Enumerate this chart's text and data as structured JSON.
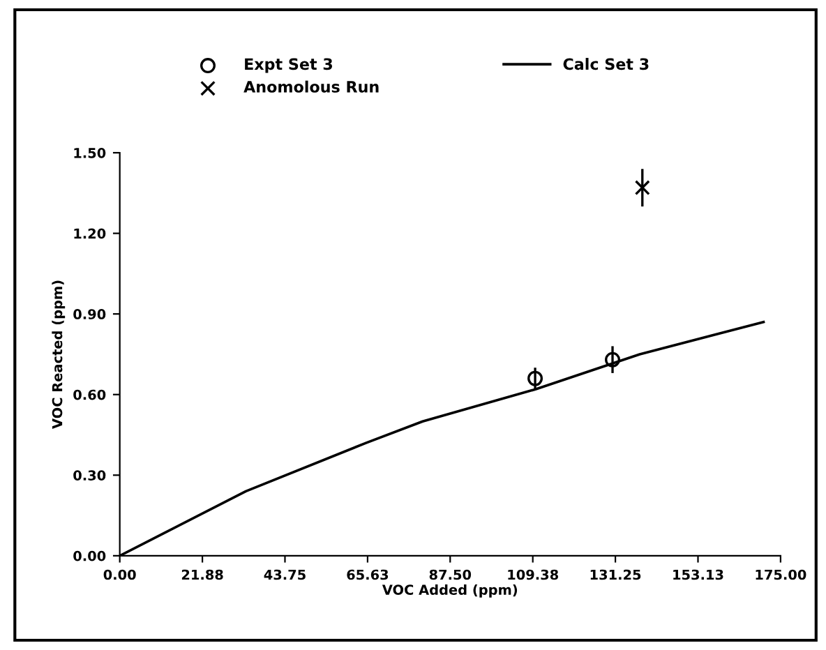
{
  "chart_data": {
    "type": "line",
    "xlabel": "VOC Added (ppm)",
    "ylabel": "VOC Reacted (ppm)",
    "xlim": [
      0,
      175
    ],
    "xticks": [
      {
        "value": 0,
        "label": "0.00"
      },
      {
        "value": 21.88,
        "label": "21.88"
      },
      {
        "value": 43.75,
        "label": "43.75"
      },
      {
        "value": 65.63,
        "label": "65.63"
      },
      {
        "value": 87.5,
        "label": "87.50"
      },
      {
        "value": 109.38,
        "label": "109.38"
      },
      {
        "value": 131.25,
        "label": "131.25"
      },
      {
        "value": 153.13,
        "label": "153.13"
      },
      {
        "value": 175,
        "label": "175.00"
      }
    ],
    "ylim": [
      0,
      1.5
    ],
    "yticks": [
      {
        "value": 0,
        "label": "0.00"
      },
      {
        "value": 0.3,
        "label": "0.30"
      },
      {
        "value": 0.6,
        "label": "0.60"
      },
      {
        "value": 0.9,
        "label": "0.90"
      },
      {
        "value": 1.2,
        "label": "1.20"
      },
      {
        "value": 1.5,
        "label": "1.50"
      }
    ],
    "grid": false,
    "legend": "top",
    "series": [
      {
        "name": "Expt Set 3",
        "type": "scatter",
        "marker": "circle",
        "color": "#000000",
        "x": [
          110,
          130.5
        ],
        "values": [
          0.66,
          0.73
        ],
        "errors": [
          0.04,
          0.05
        ]
      },
      {
        "name": "Anomolous Run",
        "type": "scatter",
        "marker": "cross",
        "color": "#000000",
        "x": [
          138.4
        ],
        "values": [
          1.37
        ],
        "errors": [
          0.07
        ]
      },
      {
        "name": "Calc Set 3",
        "marker": "none",
        "line_style": "solid",
        "color": "#000000",
        "x": [
          0,
          33.4,
          65.2,
          80.2,
          110.2,
          137.7,
          170.5
        ],
        "values": [
          0,
          0.24,
          0.42,
          0.5,
          0.62,
          0.75,
          0.87
        ]
      }
    ]
  }
}
